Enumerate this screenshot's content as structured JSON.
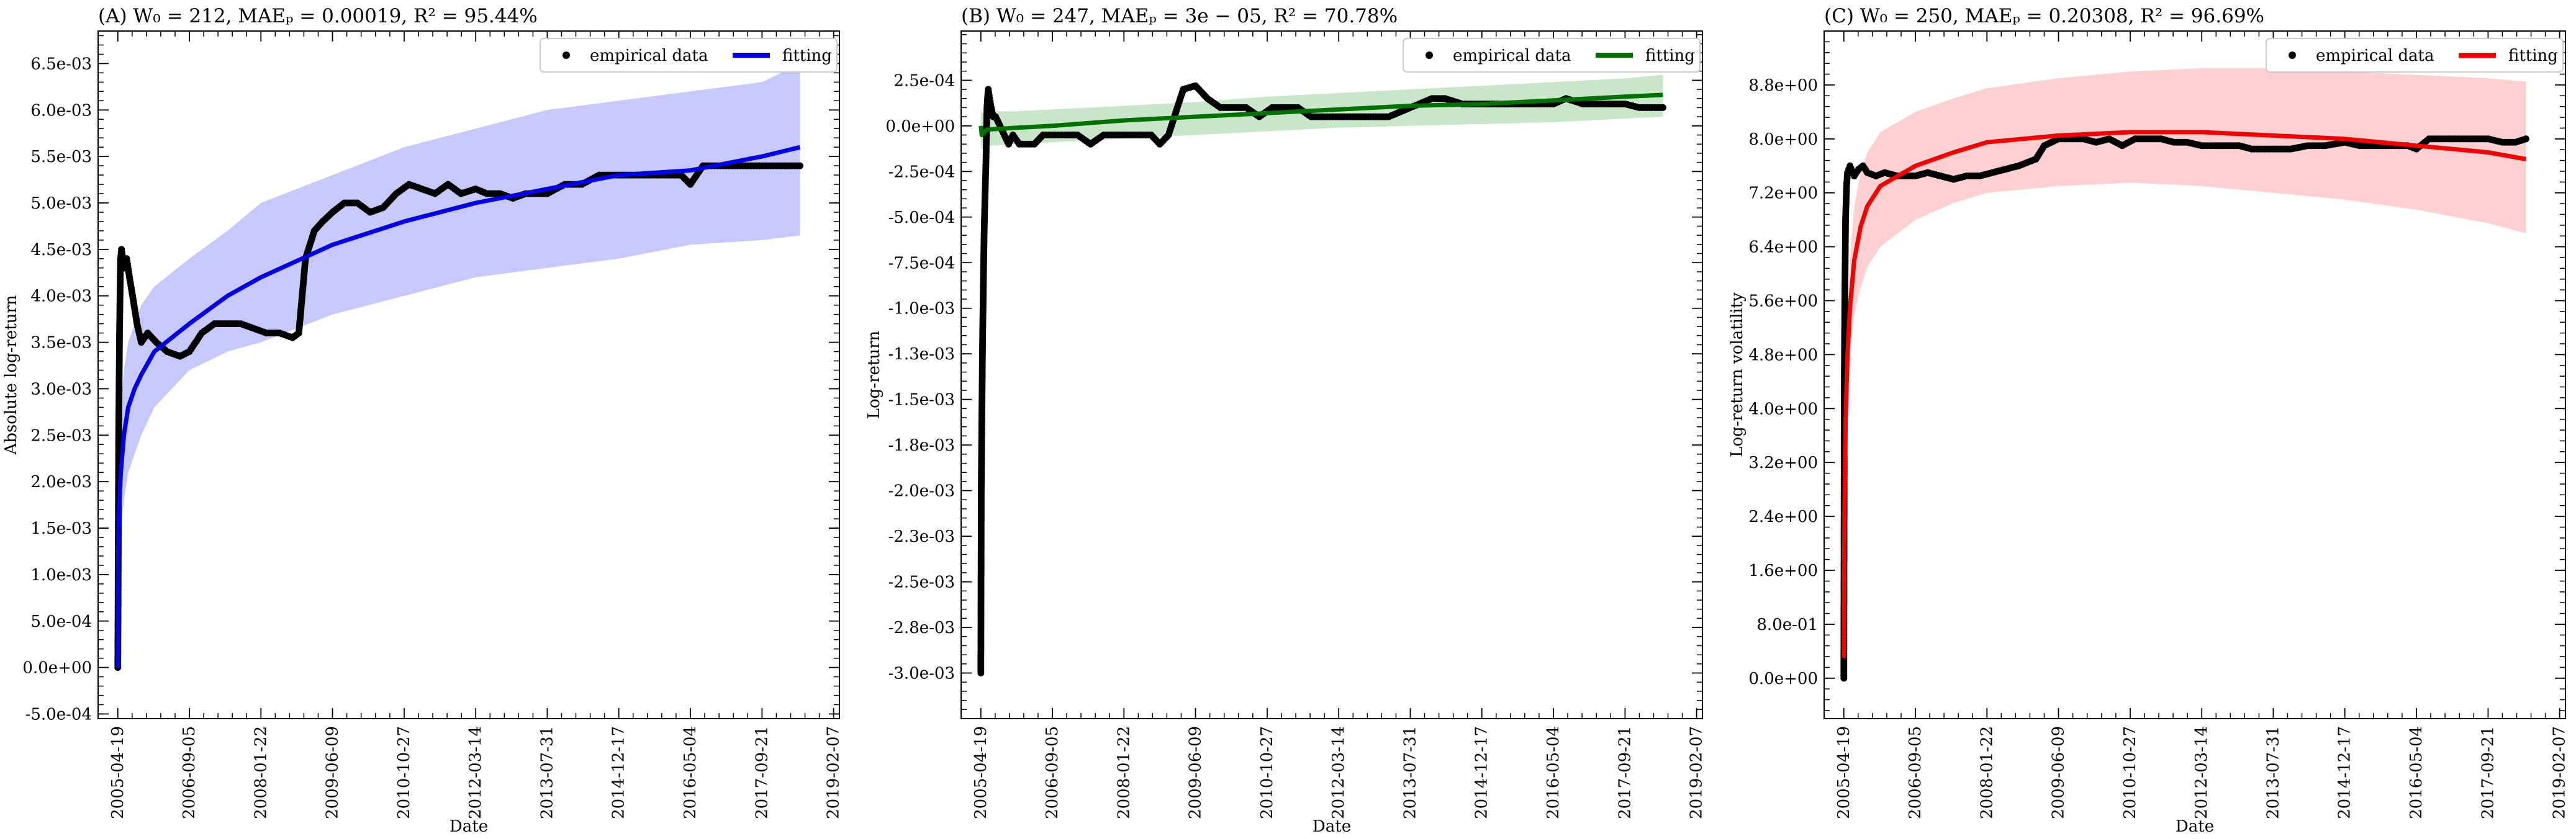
{
  "chart_data": [
    {
      "type": "line",
      "title": "(A) W₀ = 212, MAEₚ = 0.00019, R² = 95.44%",
      "xlabel": "Date",
      "ylabel": "Absolute log-return",
      "x_ticks": [
        "2005-04-19",
        "2006-09-05",
        "2008-01-22",
        "2009-06-09",
        "2010-10-27",
        "2012-03-14",
        "2013-07-31",
        "2014-12-17",
        "2016-05-04",
        "2017-09-21",
        "2019-02-07"
      ],
      "xlim": [
        "2004-12-01",
        "2019-03-20"
      ],
      "ylim": [
        -0.00055,
        0.00685
      ],
      "y_ticks": [
        -0.0005,
        0,
        0.0005,
        0.001,
        0.0015,
        0.002,
        0.0025,
        0.003,
        0.0035,
        0.004,
        0.0045,
        0.005,
        0.0055,
        0.006,
        0.0065
      ],
      "y_tick_labels": [
        "-5.0e-04",
        "0.0e+00",
        "5.0e-04",
        "1.0e-03",
        "1.5e-03",
        "2.0e-03",
        "2.5e-03",
        "3.0e-03",
        "3.5e-03",
        "4.0e-03",
        "4.5e-03",
        "5.0e-03",
        "5.5e-03",
        "6.0e-03",
        "6.5e-03"
      ],
      "legend": {
        "position": "top-right",
        "empirical_label": "empirical data",
        "fit_label": "fitting"
      },
      "fit_color": "#0000e6",
      "band_color": "#c8c8ff",
      "empirical": {
        "x": [
          "2005-04-19",
          "2005-04-25",
          "2005-05-01",
          "2005-05-08",
          "2005-05-15",
          "2005-06-01",
          "2005-06-20",
          "2005-07-10",
          "2005-08-01",
          "2005-09-01",
          "2005-10-01",
          "2005-11-15",
          "2006-01-15",
          "2006-04-01",
          "2006-07-01",
          "2006-09-05",
          "2006-12-01",
          "2007-03-01",
          "2007-06-01",
          "2007-09-01",
          "2007-12-01",
          "2008-03-01",
          "2008-06-01",
          "2008-09-01",
          "2008-10-15",
          "2008-12-01",
          "2009-02-01",
          "2009-04-01",
          "2009-06-09",
          "2009-09-01",
          "2009-12-01",
          "2010-03-01",
          "2010-06-01",
          "2010-09-01",
          "2010-12-01",
          "2011-03-01",
          "2011-06-01",
          "2011-09-01",
          "2011-12-01",
          "2012-03-14",
          "2012-06-01",
          "2012-09-01",
          "2012-12-01",
          "2013-03-01",
          "2013-07-31",
          "2013-12-01",
          "2014-04-01",
          "2014-08-01",
          "2014-12-17",
          "2015-04-01",
          "2015-08-01",
          "2015-12-01",
          "2016-03-01",
          "2016-05-04",
          "2016-08-01",
          "2016-12-01",
          "2017-04-01",
          "2017-09-21",
          "2018-01-01",
          "2018-04-01",
          "2018-06-15"
        ],
        "y": [
          0.0,
          0.0025,
          0.0036,
          0.0044,
          0.0045,
          0.0043,
          0.0044,
          0.0042,
          0.004,
          0.0037,
          0.0035,
          0.0036,
          0.0035,
          0.0034,
          0.00335,
          0.0034,
          0.0036,
          0.0037,
          0.0037,
          0.0037,
          0.00365,
          0.0036,
          0.0036,
          0.00355,
          0.0036,
          0.0044,
          0.0047,
          0.0048,
          0.0049,
          0.005,
          0.005,
          0.0049,
          0.00495,
          0.0051,
          0.0052,
          0.00515,
          0.0051,
          0.0052,
          0.0051,
          0.00515,
          0.0051,
          0.0051,
          0.00505,
          0.0051,
          0.0051,
          0.0052,
          0.0052,
          0.0053,
          0.0053,
          0.0053,
          0.0053,
          0.0053,
          0.0053,
          0.0052,
          0.0054,
          0.0054,
          0.0054,
          0.0054,
          0.0054,
          0.0054,
          0.0054
        ]
      },
      "fit": {
        "x": [
          "2005-04-19",
          "2005-04-22",
          "2005-04-28",
          "2005-05-10",
          "2005-06-01",
          "2005-07-01",
          "2005-08-15",
          "2005-10-01",
          "2006-01-01",
          "2006-09-05",
          "2007-06-01",
          "2008-01-22",
          "2009-06-09",
          "2010-10-27",
          "2012-03-14",
          "2013-07-31",
          "2014-12-17",
          "2016-05-04",
          "2017-09-21",
          "2018-06-15"
        ],
        "y": [
          0.0,
          0.0012,
          0.0017,
          0.0021,
          0.0025,
          0.0028,
          0.003,
          0.00315,
          0.0034,
          0.0037,
          0.004,
          0.0042,
          0.00455,
          0.0048,
          0.005,
          0.00515,
          0.0053,
          0.00535,
          0.0055,
          0.0056
        ],
        "lower": [
          0.0,
          0.0008,
          0.0012,
          0.0015,
          0.0018,
          0.0021,
          0.0023,
          0.0025,
          0.0028,
          0.0032,
          0.0034,
          0.0035,
          0.0038,
          0.004,
          0.0042,
          0.0043,
          0.0044,
          0.00455,
          0.0046,
          0.00465
        ],
        "upper": [
          0.0,
          0.0016,
          0.0023,
          0.0028,
          0.0032,
          0.0035,
          0.0037,
          0.0039,
          0.0041,
          0.0044,
          0.0047,
          0.005,
          0.0053,
          0.0056,
          0.0058,
          0.006,
          0.0061,
          0.0062,
          0.0063,
          0.0065
        ]
      }
    },
    {
      "type": "line",
      "title": "(B) W₀ = 247, MAEₚ = 3e − 05, R² = 70.78%",
      "xlabel": "Date",
      "ylabel": "Log-return",
      "x_ticks": [
        "2005-04-19",
        "2006-09-05",
        "2008-01-22",
        "2009-06-09",
        "2010-10-27",
        "2012-03-14",
        "2013-07-31",
        "2014-12-17",
        "2016-05-04",
        "2017-09-21",
        "2019-02-07"
      ],
      "xlim": [
        "2004-12-01",
        "2019-03-20"
      ],
      "ylim": [
        -0.00325,
        0.00052
      ],
      "y_ticks": [
        -0.003,
        -0.00275,
        -0.0025,
        -0.00225,
        -0.002,
        -0.00175,
        -0.0015,
        -0.00125,
        -0.001,
        -0.00075,
        -0.0005,
        -0.00025,
        0,
        0.00025
      ],
      "y_tick_labels": [
        "-3.0e-03",
        "-2.8e-03",
        "-2.5e-03",
        "-2.3e-03",
        "-2.0e-03",
        "-1.8e-03",
        "-1.5e-03",
        "-1.3e-03",
        "-1.0e-03",
        "-7.5e-04",
        "-5.0e-04",
        "-2.5e-04",
        "0.0e+00",
        "2.5e-04"
      ],
      "legend": {
        "position": "top-right",
        "empirical_label": "empirical data",
        "fit_label": "fitting"
      },
      "fit_color": "#007000",
      "band_color": "#c8e6c8",
      "empirical": {
        "x": [
          "2005-04-19",
          "2005-04-22",
          "2005-04-26",
          "2005-05-01",
          "2005-05-06",
          "2005-05-12",
          "2005-05-18",
          "2005-05-25",
          "2005-06-01",
          "2005-06-10",
          "2005-06-20",
          "2005-07-01",
          "2005-07-15",
          "2005-08-01",
          "2005-09-01",
          "2005-10-01",
          "2005-11-01",
          "2005-12-01",
          "2006-01-15",
          "2006-03-01",
          "2006-05-01",
          "2006-07-01",
          "2006-09-05",
          "2006-12-01",
          "2007-03-01",
          "2007-06-01",
          "2007-09-01",
          "2007-12-01",
          "2008-03-01",
          "2008-06-01",
          "2008-08-01",
          "2008-10-01",
          "2008-12-01",
          "2009-02-01",
          "2009-03-15",
          "2009-06-09",
          "2009-09-01",
          "2009-12-01",
          "2010-03-01",
          "2010-06-01",
          "2010-09-01",
          "2010-12-01",
          "2011-03-01",
          "2011-06-01",
          "2011-09-01",
          "2011-12-01",
          "2012-03-14",
          "2012-06-01",
          "2012-09-01",
          "2012-12-01",
          "2013-03-01",
          "2013-07-31",
          "2013-10-01",
          "2014-01-01",
          "2014-04-01",
          "2014-08-01",
          "2014-12-17",
          "2015-04-01",
          "2015-08-01",
          "2015-12-01",
          "2016-03-01",
          "2016-05-04",
          "2016-08-01",
          "2016-12-01",
          "2017-04-01",
          "2017-09-21",
          "2018-01-01",
          "2018-04-01",
          "2018-06-15"
        ],
        "y": [
          -0.003,
          -0.002,
          -0.0016,
          -0.0012,
          -0.0009,
          -0.0006,
          -0.0004,
          -0.0002,
          0.0001,
          0.0002,
          0.00015,
          0.0001,
          5e-05,
          5e-05,
          0.0,
          -5e-05,
          -0.0001,
          -5e-05,
          -0.0001,
          -0.0001,
          -0.0001,
          -5e-05,
          -5e-05,
          -5e-05,
          -5e-05,
          -0.0001,
          -5e-05,
          -5e-05,
          -5e-05,
          -5e-05,
          -5e-05,
          -0.0001,
          -5e-05,
          0.0001,
          0.0002,
          0.00022,
          0.00015,
          0.0001,
          0.0001,
          0.0001,
          5e-05,
          0.0001,
          0.0001,
          0.0001,
          5e-05,
          5e-05,
          5e-05,
          5e-05,
          5e-05,
          5e-05,
          5e-05,
          0.0001,
          0.00012,
          0.00015,
          0.00015,
          0.00012,
          0.00012,
          0.00012,
          0.00012,
          0.00012,
          0.00012,
          0.00012,
          0.00015,
          0.00012,
          0.00012,
          0.00012,
          0.0001,
          0.0001,
          0.0001
        ]
      },
      "fit": {
        "x": [
          "2005-04-19",
          "2005-04-25",
          "2005-06-01",
          "2006-01-01",
          "2006-09-05",
          "2008-01-22",
          "2009-06-09",
          "2010-10-27",
          "2012-03-14",
          "2013-07-31",
          "2014-12-17",
          "2016-05-04",
          "2017-09-21",
          "2018-06-15"
        ],
        "y": [
          0.0,
          -5e-05,
          -2e-05,
          -1e-05,
          0.0,
          3e-05,
          5e-05,
          7e-05,
          9e-05,
          0.00011,
          0.00012,
          0.00014,
          0.00016,
          0.00017
        ],
        "lower": [
          -0.0001,
          -0.00013,
          -0.00011,
          -0.0001,
          -9e-05,
          -7e-05,
          -5e-05,
          -3e-05,
          -1e-05,
          0.0,
          1e-05,
          2e-05,
          4e-05,
          5e-05
        ],
        "upper": [
          0.0001,
          7e-05,
          8e-05,
          8e-05,
          9e-05,
          0.00011,
          0.00013,
          0.00016,
          0.00018,
          0.0002,
          0.00022,
          0.00024,
          0.00026,
          0.00028
        ]
      }
    },
    {
      "type": "line",
      "title": "(C) W₀ = 250, MAEₚ = 0.20308, R² = 96.69%",
      "xlabel": "Date",
      "ylabel": "Log-return volatility",
      "x_ticks": [
        "2005-04-19",
        "2006-09-05",
        "2008-01-22",
        "2009-06-09",
        "2010-10-27",
        "2012-03-14",
        "2013-07-31",
        "2014-12-17",
        "2016-05-04",
        "2017-09-21",
        "2019-02-07"
      ],
      "xlim": [
        "2004-12-01",
        "2019-03-20"
      ],
      "ylim": [
        -0.6,
        9.6
      ],
      "y_ticks": [
        0,
        0.8,
        1.6,
        2.4,
        3.2,
        4.0,
        4.8,
        5.6,
        6.4,
        7.2,
        8.0,
        8.8
      ],
      "y_tick_labels": [
        "0.0e+00",
        "8.0e-01",
        "1.6e+00",
        "2.4e+00",
        "3.2e+00",
        "4.0e+00",
        "4.8e+00",
        "5.6e+00",
        "6.4e+00",
        "7.2e+00",
        "8.0e+00",
        "8.8e+00"
      ],
      "legend": {
        "position": "top-right",
        "empirical_label": "empirical data",
        "fit_label": "fitting"
      },
      "fit_color": "#f00000",
      "band_color": "#ffd0d0",
      "empirical": {
        "x": [
          "2005-04-19",
          "2005-04-22",
          "2005-04-26",
          "2005-05-01",
          "2005-05-08",
          "2005-05-15",
          "2005-06-01",
          "2005-07-01",
          "2005-08-01",
          "2005-09-01",
          "2005-10-01",
          "2005-12-01",
          "2006-02-01",
          "2006-05-01",
          "2006-09-05",
          "2006-12-01",
          "2007-03-01",
          "2007-06-01",
          "2007-09-01",
          "2007-12-01",
          "2008-03-01",
          "2008-06-01",
          "2008-09-01",
          "2009-01-01",
          "2009-03-01",
          "2009-06-09",
          "2009-09-01",
          "2009-12-01",
          "2010-03-01",
          "2010-06-01",
          "2010-09-01",
          "2010-12-01",
          "2011-03-01",
          "2011-06-01",
          "2011-09-01",
          "2011-12-01",
          "2012-03-14",
          "2012-06-01",
          "2012-09-01",
          "2012-12-01",
          "2013-03-01",
          "2013-07-31",
          "2013-12-01",
          "2014-04-01",
          "2014-08-01",
          "2014-12-17",
          "2015-04-01",
          "2015-08-01",
          "2015-12-01",
          "2016-03-01",
          "2016-05-04",
          "2016-08-01",
          "2016-12-01",
          "2017-04-01",
          "2017-09-21",
          "2018-01-01",
          "2018-04-01",
          "2018-06-15"
        ],
        "y": [
          0.0,
          4.4,
          5.7,
          6.8,
          7.3,
          7.5,
          7.6,
          7.45,
          7.55,
          7.6,
          7.5,
          7.45,
          7.5,
          7.45,
          7.45,
          7.5,
          7.45,
          7.4,
          7.45,
          7.45,
          7.5,
          7.55,
          7.6,
          7.7,
          7.9,
          8.0,
          8.0,
          8.0,
          7.95,
          8.0,
          7.9,
          8.0,
          8.0,
          8.0,
          7.95,
          7.95,
          7.9,
          7.9,
          7.9,
          7.9,
          7.85,
          7.85,
          7.85,
          7.9,
          7.9,
          7.95,
          7.9,
          7.9,
          7.9,
          7.9,
          7.85,
          8.0,
          8.0,
          8.0,
          8.0,
          7.95,
          7.95,
          8.0
        ]
      },
      "fit": {
        "x": [
          "2005-04-19",
          "2005-04-21",
          "2005-04-25",
          "2005-05-01",
          "2005-05-15",
          "2005-06-01",
          "2005-07-01",
          "2005-08-15",
          "2005-10-01",
          "2006-01-01",
          "2006-09-05",
          "2007-06-01",
          "2008-01-22",
          "2009-06-09",
          "2010-10-27",
          "2012-03-14",
          "2013-07-31",
          "2014-12-17",
          "2016-05-04",
          "2017-09-21",
          "2018-06-15"
        ],
        "y": [
          0.3,
          1.6,
          2.8,
          3.8,
          4.8,
          5.5,
          6.2,
          6.7,
          7.0,
          7.3,
          7.6,
          7.8,
          7.95,
          8.05,
          8.1,
          8.1,
          8.05,
          8.0,
          7.9,
          7.8,
          7.7
        ],
        "lower": [
          0.3,
          1.6,
          2.8,
          3.6,
          4.3,
          4.8,
          5.4,
          5.8,
          6.1,
          6.4,
          6.8,
          7.05,
          7.2,
          7.3,
          7.35,
          7.3,
          7.2,
          7.1,
          6.95,
          6.75,
          6.6
        ],
        "upper": [
          0.3,
          1.6,
          2.8,
          4.0,
          5.3,
          6.2,
          7.0,
          7.5,
          7.8,
          8.1,
          8.4,
          8.6,
          8.75,
          8.9,
          9.0,
          9.05,
          9.05,
          9.0,
          8.95,
          8.9,
          8.85
        ]
      }
    }
  ]
}
